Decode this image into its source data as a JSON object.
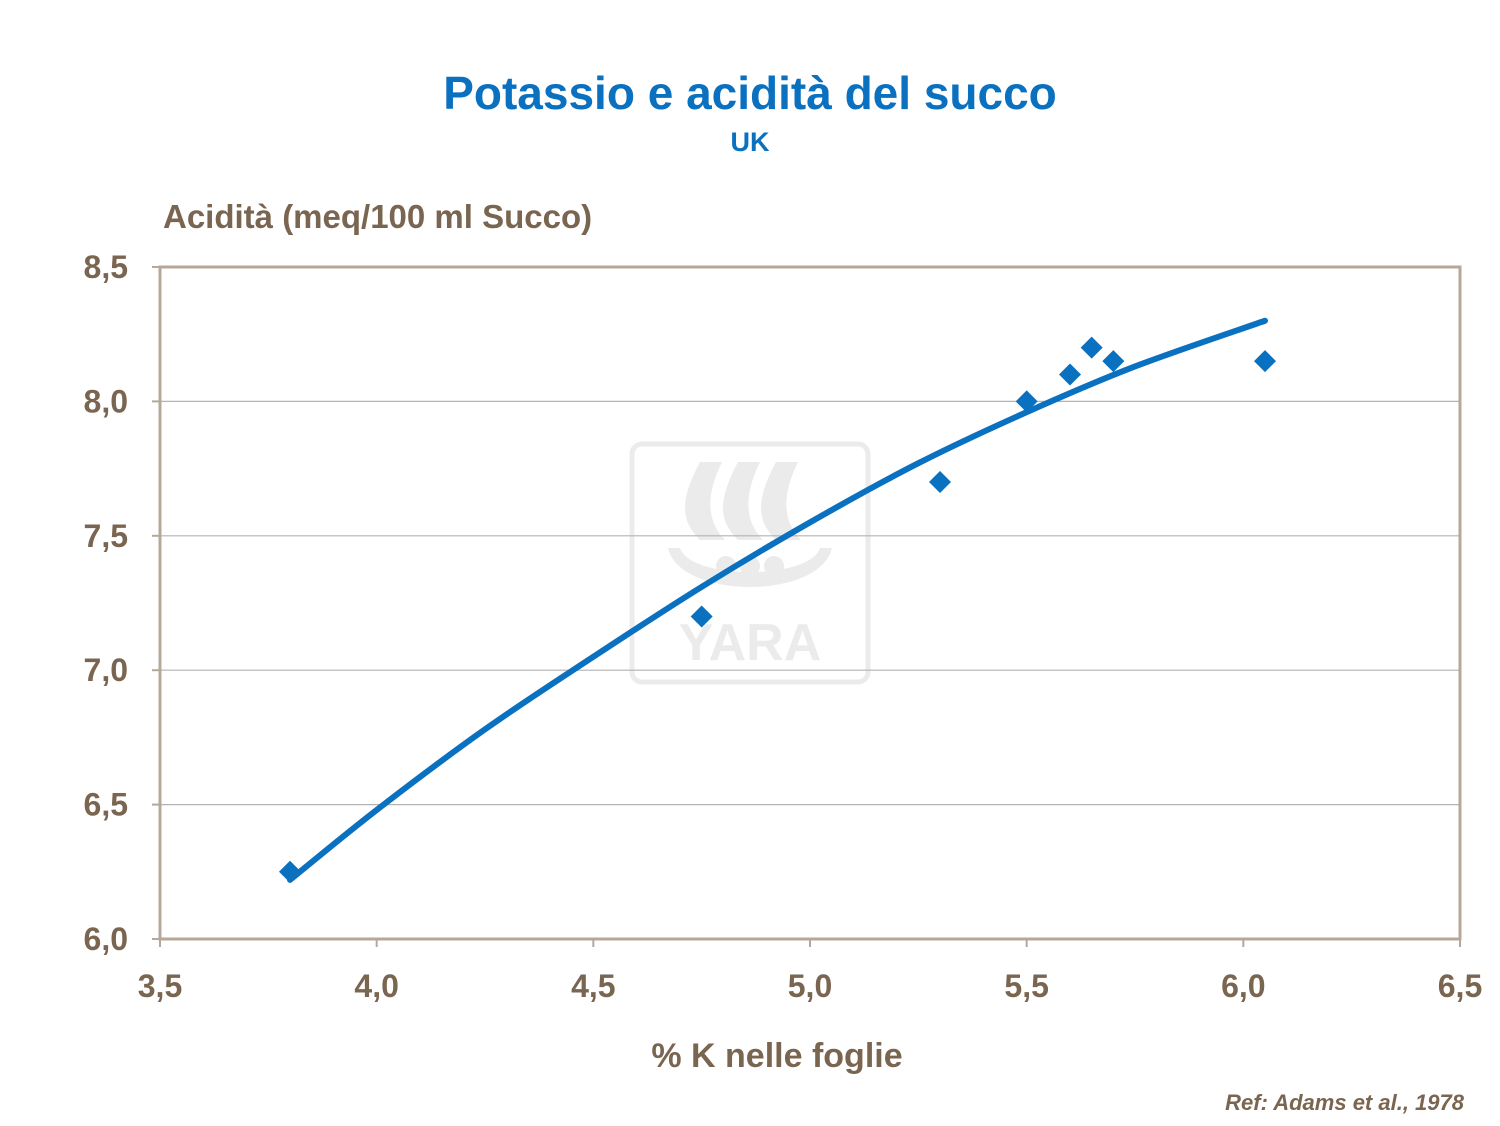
{
  "title": "Potassio e acidità del succo",
  "subtitle": "UK",
  "reference": "Ref: Adams et al., 1978",
  "watermark": "YARA",
  "colors": {
    "accent": "#0a70c0",
    "text": "#7a6650",
    "frame": "#b5a899",
    "grid": "#b3b3b3"
  },
  "chart_data": {
    "type": "scatter",
    "xlabel": "% K nelle foglie",
    "ylabel": "Acidità (meq/100 ml Succo)",
    "xlim": [
      3.5,
      6.5
    ],
    "ylim": [
      6.0,
      8.5
    ],
    "xticks": [
      3.5,
      4.0,
      4.5,
      5.0,
      5.5,
      6.0,
      6.5
    ],
    "yticks": [
      6.0,
      6.5,
      7.0,
      7.5,
      8.0,
      8.5
    ],
    "xtick_labels": [
      "3,5",
      "4,0",
      "4,5",
      "5,0",
      "5,5",
      "6,0",
      "6,5"
    ],
    "ytick_labels": [
      "6,0",
      "6,5",
      "7,0",
      "7,5",
      "8,0",
      "8,5"
    ],
    "grid": true,
    "series": [
      {
        "marker": "diamond",
        "x": [
          3.8,
          4.75,
          5.3,
          5.5,
          5.6,
          5.65,
          5.7,
          6.05
        ],
        "y": [
          6.25,
          7.2,
          7.7,
          8.0,
          8.1,
          8.2,
          8.15,
          8.15
        ]
      }
    ],
    "trendline": {
      "type": "polynomial",
      "x": [
        3.8,
        4.0,
        4.25,
        4.5,
        4.75,
        5.0,
        5.25,
        5.5,
        5.75,
        6.05
      ],
      "y": [
        6.22,
        6.48,
        6.78,
        7.05,
        7.31,
        7.55,
        7.77,
        7.96,
        8.13,
        8.3
      ]
    }
  }
}
